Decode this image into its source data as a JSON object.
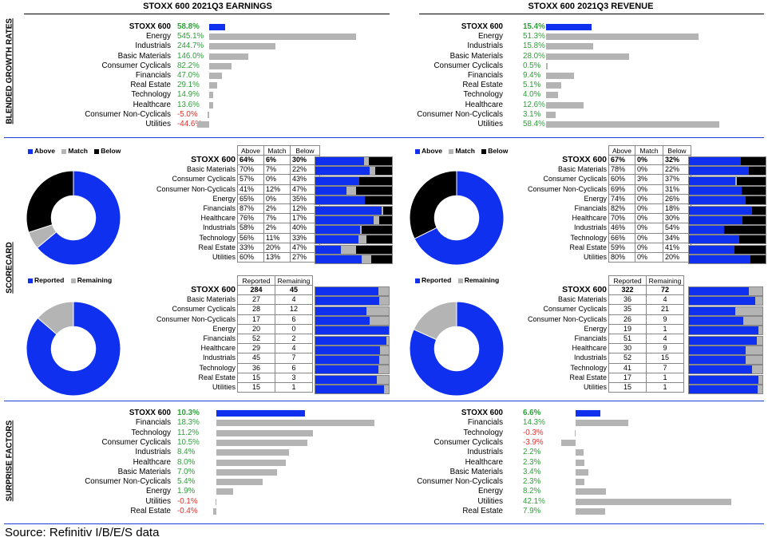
{
  "headers": {
    "earnings": "STOXX 600 2021Q3 EARNINGS",
    "revenue": "STOXX 600 2021Q3 REVENUE"
  },
  "sections": {
    "growth": "BLENDED GROWTH RATES",
    "scorecard": "SCORECARD",
    "surprise": "SURPRISE FACTORS"
  },
  "source": "Source: Refinitiv I/B/E/S data",
  "colors": {
    "blue": "#1030f0",
    "grey": "#b4b4b4",
    "black": "#000000",
    "green": "#2e9e3a",
    "red": "#e0302b",
    "rule": "#1f3fd8"
  },
  "legends": {
    "above": "Above",
    "match": "Match",
    "below": "Below",
    "reported": "Reported",
    "remaining": "Remaining"
  },
  "chart_data": [
    {
      "id": "earnings_growth",
      "type": "bar",
      "categories": [
        "STOXX 600",
        "Energy",
        "Industrials",
        "Basic Materials",
        "Consumer Cyclicals",
        "Financials",
        "Real Estate",
        "Technology",
        "Healthcare",
        "Consumer Non-Cyclicals",
        "Utilities"
      ],
      "labels": [
        "58.8%",
        "545.1%",
        "244.7%",
        "146.0%",
        "82.2%",
        "47.0%",
        "29.1%",
        "14.9%",
        "13.6%",
        "-5.0%",
        "-44.6%"
      ],
      "values": [
        58.8,
        545.1,
        244.7,
        146.0,
        82.2,
        47.0,
        29.1,
        14.9,
        13.6,
        -5.0,
        -44.6
      ]
    },
    {
      "id": "revenue_growth",
      "type": "bar",
      "categories": [
        "STOXX 600",
        "Energy",
        "Industrials",
        "Basic Materials",
        "Consumer Cyclicals",
        "Financials",
        "Real Estate",
        "Technology",
        "Healthcare",
        "Consumer Non-Cyclicals",
        "Utilities"
      ],
      "labels": [
        "15.4%",
        "51.3%",
        "15.8%",
        "28.0%",
        "0.5%",
        "9.4%",
        "5.1%",
        "4.0%",
        "12.6%",
        "3.1%",
        "58.4%"
      ],
      "values": [
        15.4,
        51.3,
        15.8,
        28.0,
        0.5,
        9.4,
        5.1,
        4.0,
        12.6,
        3.1,
        58.4
      ]
    },
    {
      "id": "earnings_scorecard",
      "type": "table",
      "columns": [
        "Above",
        "Match",
        "Below"
      ],
      "rows": [
        [
          "STOXX 600",
          "64%",
          "6%",
          "30%"
        ],
        [
          "Basic Materials",
          "70%",
          "7%",
          "22%"
        ],
        [
          "Consumer Cyclicals",
          "57%",
          "0%",
          "43%"
        ],
        [
          "Consumer Non-Cyclicals",
          "41%",
          "12%",
          "47%"
        ],
        [
          "Energy",
          "65%",
          "0%",
          "35%"
        ],
        [
          "Financials",
          "87%",
          "2%",
          "12%"
        ],
        [
          "Healthcare",
          "76%",
          "7%",
          "17%"
        ],
        [
          "Industrials",
          "58%",
          "2%",
          "40%"
        ],
        [
          "Technology",
          "56%",
          "11%",
          "33%"
        ],
        [
          "Real Estate",
          "33%",
          "20%",
          "47%"
        ],
        [
          "Utilities",
          "60%",
          "13%",
          "27%"
        ]
      ],
      "pie": [
        64,
        6,
        30
      ]
    },
    {
      "id": "revenue_scorecard",
      "type": "table",
      "columns": [
        "Above",
        "Match",
        "Below"
      ],
      "rows": [
        [
          "STOXX 600",
          "67%",
          "0%",
          "32%"
        ],
        [
          "Basic Materials",
          "78%",
          "0%",
          "22%"
        ],
        [
          "Consumer Cyclicals",
          "60%",
          "3%",
          "37%"
        ],
        [
          "Consumer Non-Cyclicals",
          "69%",
          "0%",
          "31%"
        ],
        [
          "Energy",
          "74%",
          "0%",
          "26%"
        ],
        [
          "Financials",
          "82%",
          "0%",
          "18%"
        ],
        [
          "Healthcare",
          "70%",
          "0%",
          "30%"
        ],
        [
          "Industrials",
          "46%",
          "0%",
          "54%"
        ],
        [
          "Technology",
          "66%",
          "0%",
          "34%"
        ],
        [
          "Real Estate",
          "59%",
          "0%",
          "41%"
        ],
        [
          "Utilities",
          "80%",
          "0%",
          "20%"
        ]
      ],
      "pie": [
        67,
        0,
        32
      ]
    },
    {
      "id": "earnings_reported",
      "type": "table",
      "columns": [
        "Reported",
        "Remaining"
      ],
      "rows": [
        [
          "STOXX 600",
          "284",
          "45"
        ],
        [
          "Basic Materials",
          "27",
          "4"
        ],
        [
          "Consumer Cyclicals",
          "28",
          "12"
        ],
        [
          "Consumer Non-Cyclicals",
          "17",
          "6"
        ],
        [
          "Energy",
          "20",
          "0"
        ],
        [
          "Financials",
          "52",
          "2"
        ],
        [
          "Healthcare",
          "29",
          "4"
        ],
        [
          "Industrials",
          "45",
          "7"
        ],
        [
          "Technology",
          "36",
          "6"
        ],
        [
          "Real Estate",
          "15",
          "3"
        ],
        [
          "Utilities",
          "15",
          "1"
        ]
      ],
      "pie": [
        284,
        45
      ]
    },
    {
      "id": "revenue_reported",
      "type": "table",
      "columns": [
        "Reported",
        "Remaining"
      ],
      "rows": [
        [
          "STOXX 600",
          "322",
          "72"
        ],
        [
          "Basic Materials",
          "36",
          "4"
        ],
        [
          "Consumer Cyclicals",
          "35",
          "21"
        ],
        [
          "Consumer Non-Cyclicals",
          "26",
          "9"
        ],
        [
          "Energy",
          "19",
          "1"
        ],
        [
          "Financials",
          "51",
          "4"
        ],
        [
          "Healthcare",
          "30",
          "9"
        ],
        [
          "Industrials",
          "52",
          "15"
        ],
        [
          "Technology",
          "41",
          "7"
        ],
        [
          "Real Estate",
          "17",
          "1"
        ],
        [
          "Utilities",
          "15",
          "1"
        ]
      ],
      "pie": [
        322,
        72
      ]
    },
    {
      "id": "earnings_surprise",
      "type": "bar",
      "categories": [
        "STOXX 600",
        "Financials",
        "Technology",
        "Consumer Cyclicals",
        "Industrials",
        "Healthcare",
        "Basic Materials",
        "Consumer Non-Cyclicals",
        "Energy",
        "Utilities",
        "Real Estate"
      ],
      "labels": [
        "10.3%",
        "18.3%",
        "11.2%",
        "10.5%",
        "8.4%",
        "8.0%",
        "7.0%",
        "5.4%",
        "1.9%",
        "-0.1%",
        "-0.4%"
      ],
      "values": [
        10.3,
        18.3,
        11.2,
        10.5,
        8.4,
        8.0,
        7.0,
        5.4,
        1.9,
        -0.1,
        -0.4
      ]
    },
    {
      "id": "revenue_surprise",
      "type": "bar",
      "categories": [
        "STOXX 600",
        "Financials",
        "Technology",
        "Consumer Cyclicals",
        "Industrials",
        "Healthcare",
        "Basic Materials",
        "Consumer Non-Cyclicals",
        "Energy",
        "Utilities",
        "Real Estate"
      ],
      "labels": [
        "6.6%",
        "14.3%",
        "-0.3%",
        "-3.9%",
        "2.2%",
        "2.3%",
        "3.4%",
        "2.3%",
        "8.2%",
        "42.1%",
        "7.9%"
      ],
      "values": [
        6.6,
        14.3,
        -0.3,
        -3.9,
        2.2,
        2.3,
        3.4,
        2.3,
        8.2,
        42.1,
        7.9
      ]
    }
  ]
}
